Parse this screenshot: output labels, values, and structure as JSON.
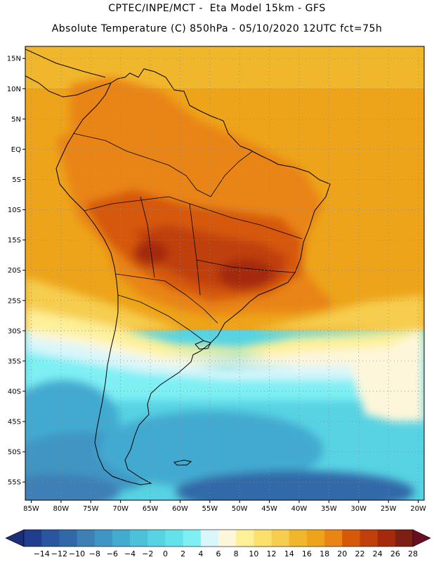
{
  "header": {
    "line1": "CPTEC/INPE/MCT -  Eta Model 15km - GFS",
    "line2": "Absolute Temperature (C) 850hPa - 05/10/2020 12UTC fct=75h"
  },
  "map": {
    "lon_range": [
      -86,
      -19
    ],
    "lat_range": [
      -58,
      17
    ],
    "grid": "dotted",
    "lat_labels": [
      "15N",
      "10N",
      "5N",
      "EQ",
      "5S",
      "10S",
      "15S",
      "20S",
      "25S",
      "30S",
      "35S",
      "40S",
      "45S",
      "50S",
      "55S"
    ],
    "lon_labels": [
      "85W",
      "80W",
      "75W",
      "70W",
      "65W",
      "60W",
      "55W",
      "50W",
      "45W",
      "40W",
      "35W",
      "30W",
      "25W",
      "20W"
    ]
  },
  "colorbar": {
    "labels": [
      "-14",
      "-12",
      "-10",
      "-8",
      "-6",
      "-4",
      "-2",
      "0",
      "2",
      "4",
      "6",
      "8",
      "10",
      "12",
      "14",
      "16",
      "18",
      "20",
      "22",
      "24",
      "26",
      "28"
    ],
    "colors": [
      "#213e8e",
      "#2a56a0",
      "#3169a8",
      "#3e7fb6",
      "#3f95c3",
      "#43aad0",
      "#4cc1da",
      "#57d3e3",
      "#63e2ec",
      "#7ef0f4",
      "#d9f6fa",
      "#fdf6da",
      "#fdf099",
      "#fbe06c",
      "#f6cd4f",
      "#f1b72c",
      "#eda41a",
      "#e98416",
      "#d55909",
      "#c0400b",
      "#a52a0c",
      "#7e1f14"
    ],
    "low_arrow_color": "#1a2f78",
    "high_arrow_color": "#6a0d22"
  }
}
